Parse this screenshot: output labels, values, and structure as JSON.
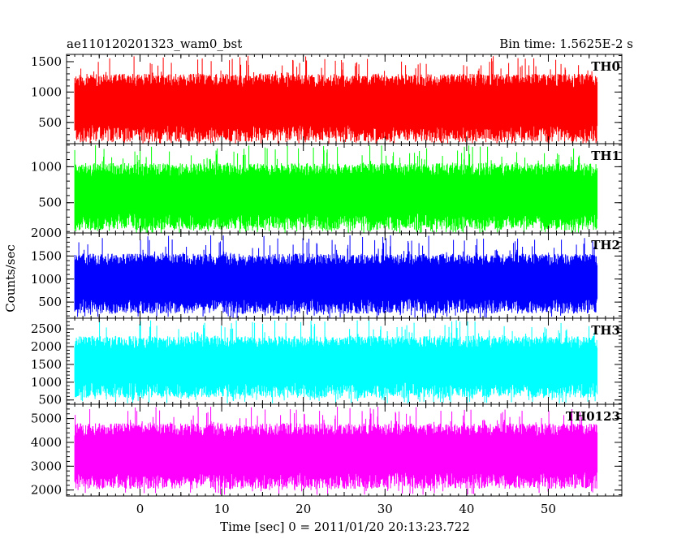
{
  "header": {
    "title": "ae110120201323_wam0_bst",
    "bin_time": "Bin time: 1.5625E-2 s"
  },
  "axes": {
    "ylabel": "Counts/sec",
    "xlabel": "Time [sec] 0 = 2011/01/20 20:13:23.722"
  },
  "chart_data": {
    "type": "line",
    "title": "ae110120201323_wam0_bst",
    "subtitle": "Bin time: 1.5625E-2 s",
    "xlabel": "Time [sec] 0 = 2011/01/20 20:13:23.722",
    "ylabel": "Counts/sec",
    "xlim": [
      -9,
      59
    ],
    "x_range_data": [
      -8,
      56
    ],
    "x_ticks": [
      0,
      10,
      20,
      30,
      40,
      50
    ],
    "grid": false,
    "legend": "none",
    "panels": [
      {
        "name": "TH0",
        "color": "#ff0000",
        "ylim": [
          150,
          1620
        ],
        "y_ticks": [
          500,
          1000,
          1500
        ],
        "typical_range": [
          180,
          1300
        ],
        "peak_max": 1600,
        "trough_min": 150
      },
      {
        "name": "TH1",
        "color": "#00ff00",
        "ylim": [
          80,
          1320
        ],
        "y_ticks": [
          500,
          1000
        ],
        "typical_range": [
          120,
          1050
        ],
        "peak_max": 1300,
        "trough_min": 80
      },
      {
        "name": "TH2",
        "color": "#0000ff",
        "ylim": [
          150,
          2000
        ],
        "y_ticks": [
          500,
          1000,
          1500,
          2000
        ],
        "typical_range": [
          250,
          1550
        ],
        "peak_max": 1950,
        "trough_min": 150
      },
      {
        "name": "TH3",
        "color": "#00ffff",
        "ylim": [
          380,
          2800
        ],
        "y_ticks": [
          500,
          1000,
          1500,
          2000,
          2500
        ],
        "typical_range": [
          560,
          2300
        ],
        "peak_max": 2750,
        "trough_min": 400
      },
      {
        "name": "TH0123",
        "color": "#ff00ff",
        "ylim": [
          1750,
          5600
        ],
        "y_ticks": [
          2000,
          3000,
          4000,
          5000
        ],
        "typical_range": [
          2050,
          4800
        ],
        "peak_max": 5500,
        "trough_min": 1800
      }
    ]
  }
}
